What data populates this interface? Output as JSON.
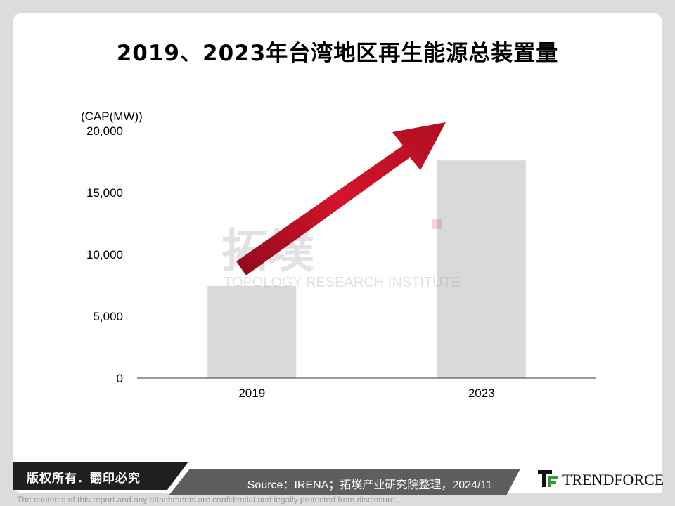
{
  "title": "2019、2023年台湾地区再生能源总装置量",
  "chart_data": {
    "type": "bar",
    "categories": [
      "2019",
      "2023"
    ],
    "values": [
      7450,
      17600
    ],
    "ylabel": "(CAP(MW))",
    "ylim": [
      0,
      20000
    ],
    "yticks": [
      0,
      5000,
      10000,
      15000,
      20000
    ],
    "ytick_labels": [
      "0",
      "5,000",
      "10,000",
      "15,000",
      "20,000"
    ],
    "bar_color": "#d9d9d9",
    "arrow_color": "#c8102e",
    "grid": false
  },
  "watermark": {
    "cn": "拓墣",
    "en": "TOPOLOGY RESEARCH INSTITUTE"
  },
  "footer": {
    "copyright": "版权所有．翻印必究",
    "source": "Source：IRENA；拓墣产业研究院整理，2024/11",
    "brand": "TRENDFORCE",
    "disclaimer": "The contents of this report and any attachments are confidential and legally protected from disclosure."
  }
}
